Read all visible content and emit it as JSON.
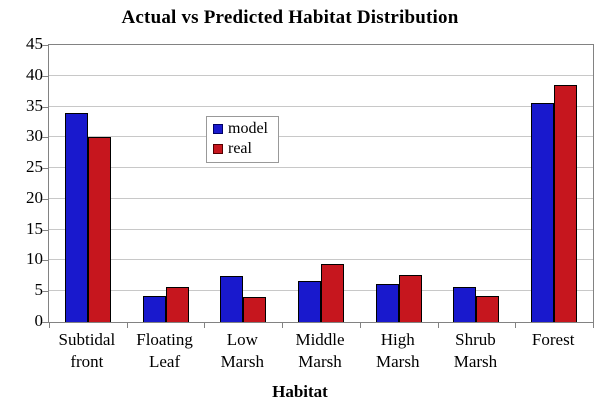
{
  "chart_data": {
    "type": "bar",
    "title": "Actual vs Predicted Habitat Distribution",
    "xlabel": "Habitat",
    "ylabel": "",
    "categories": [
      "Subtidal front",
      "Floating Leaf",
      "Low Marsh",
      "Middle Marsh",
      "High Marsh",
      "Shrub Marsh",
      "Forest"
    ],
    "series": [
      {
        "name": "model",
        "color": "#1919CD",
        "swatch_border": "#000066",
        "values": [
          34,
          4.2,
          7.4,
          6.7,
          6.2,
          5.7,
          35.5
        ]
      },
      {
        "name": "real",
        "color": "#C6161E",
        "swatch_border": "#550000",
        "values": [
          30,
          5.7,
          4.1,
          9.4,
          7.7,
          4.3,
          38.5
        ]
      }
    ],
    "ylim": [
      0,
      45
    ],
    "ytick_step": 5,
    "ytick_labels": [
      "0",
      "5",
      "10",
      "15",
      "20",
      "25",
      "30",
      "35",
      "40",
      "45"
    ],
    "grid": true,
    "legend_position": "inside-upper-left-of-center",
    "bar_border_color": "#000000"
  },
  "colors": {
    "background": "#ffffff",
    "gridline": "#c8c8c8",
    "axis_frame": "#828282",
    "text": "#000000",
    "legend_border": "#999999"
  }
}
